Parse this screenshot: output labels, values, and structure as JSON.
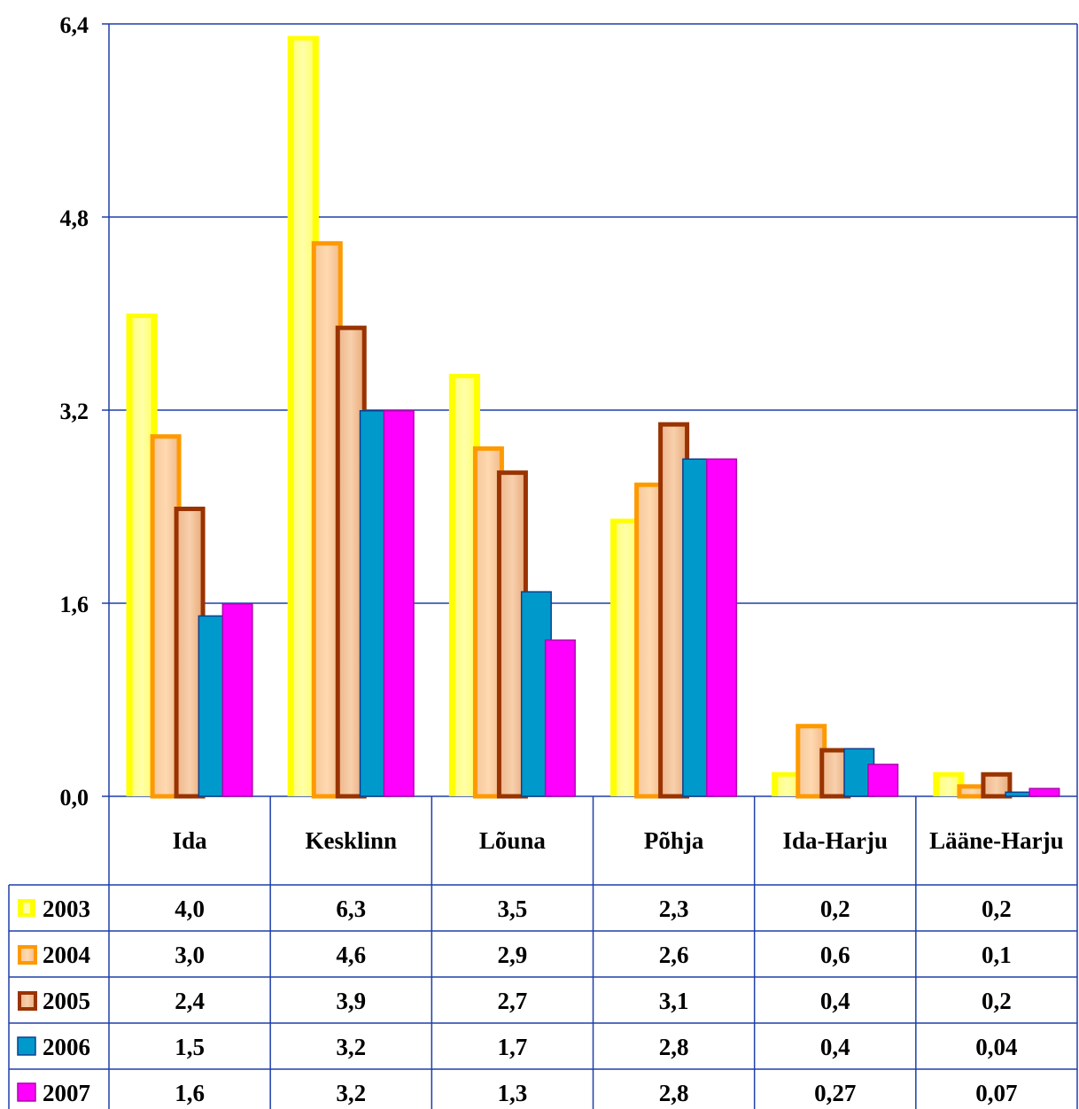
{
  "chart_data": {
    "type": "bar",
    "categories": [
      "Ida",
      "Kesklinn",
      "Lõuna",
      "Põhja",
      "Ida-Harju",
      "Lääne-Harju"
    ],
    "ylim": [
      0,
      6.4
    ],
    "yticks": [
      "0,0",
      "1,6",
      "3,2",
      "4,8",
      "6,4"
    ],
    "ytick_values": [
      0,
      1.6,
      3.2,
      4.8,
      6.4
    ],
    "grid": true,
    "legend_placement": "data-table",
    "series": [
      {
        "name": "2003",
        "color": "#ffff00",
        "edge": "#ffff33",
        "values": [
          4.0,
          6.3,
          3.5,
          2.3,
          0.2,
          0.2
        ],
        "labels": [
          "4,0",
          "6,3",
          "3,5",
          "2,3",
          "0,2",
          "0,2"
        ]
      },
      {
        "name": "2004",
        "color": "#ff9900",
        "edge": "#ff9a1a",
        "values": [
          3.0,
          4.6,
          2.9,
          2.6,
          0.6,
          0.1
        ],
        "labels": [
          "3,0",
          "4,6",
          "2,9",
          "2,6",
          "0,6",
          "0,1"
        ]
      },
      {
        "name": "2005",
        "color": "#993300",
        "edge": "#9a3300",
        "values": [
          2.4,
          3.9,
          2.7,
          3.1,
          0.4,
          0.2
        ],
        "labels": [
          "2,4",
          "3,9",
          "2,7",
          "3,1",
          "0,4",
          "0,2"
        ]
      },
      {
        "name": "2006",
        "color": "#0099cc",
        "edge": "#0d3f8f",
        "values": [
          1.5,
          3.2,
          1.7,
          2.8,
          0.4,
          0.04
        ],
        "labels": [
          "1,5",
          "3,2",
          "1,7",
          "2,8",
          "0,4",
          "0,04"
        ]
      },
      {
        "name": "2007",
        "color": "#ff00ff",
        "edge": "#b000b0",
        "values": [
          1.6,
          3.2,
          1.3,
          2.8,
          0.27,
          0.07
        ],
        "labels": [
          "1,6",
          "3,2",
          "1,3",
          "2,8",
          "0,27",
          "0,07"
        ]
      }
    ]
  }
}
